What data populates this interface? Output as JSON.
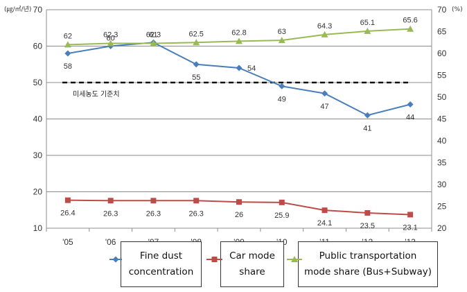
{
  "chart_data": {
    "type": "line",
    "categories": [
      "'05",
      "'06",
      "'07",
      "'08",
      "'09",
      "'10",
      "'11",
      "'12",
      "'13"
    ],
    "y_left_unit": "(㎍/㎥/년)",
    "y_right_unit": "(%)",
    "y_left_ticks": [
      "10",
      "20",
      "30",
      "40",
      "50",
      "60",
      "70"
    ],
    "y_right_ticks": [
      "20",
      "25",
      "30",
      "35",
      "40",
      "45",
      "50",
      "55",
      "60",
      "65",
      "70"
    ],
    "ylim_left": [
      10,
      70
    ],
    "ylim_right": [
      20,
      70
    ],
    "reference_line": {
      "value": 50,
      "label": "미세농도 기준치"
    },
    "series": [
      {
        "name": "Fine dust concentration",
        "axis": "left",
        "color": "#4a7ebb",
        "marker": "diamond",
        "values": [
          58,
          60,
          61,
          55,
          54,
          49,
          47,
          41,
          44
        ],
        "labels": [
          "58",
          "60",
          "61",
          "55",
          "54",
          "49",
          "47",
          "41",
          "44"
        ]
      },
      {
        "name": "Car mode share",
        "axis": "right",
        "color": "#be4b48",
        "marker": "square",
        "values": [
          26.4,
          26.3,
          26.3,
          26.3,
          26,
          25.9,
          24.1,
          23.5,
          23.1
        ],
        "labels": [
          "26.4",
          "26.3",
          "26.3",
          "26.3",
          "26",
          "25.9",
          "24.1",
          "23.5",
          "23.1"
        ]
      },
      {
        "name": "Public transportation mode share (Bus+Subway)",
        "axis": "right",
        "color": "#98b954",
        "marker": "triangle",
        "values": [
          62,
          62.3,
          62.3,
          62.5,
          62.8,
          63,
          64.3,
          65.1,
          65.6
        ],
        "labels": [
          "62",
          "62.3",
          "62.3",
          "62.5",
          "62.8",
          "63",
          "64.3",
          "65.1",
          "65.6"
        ]
      }
    ],
    "legend": {
      "position": "bottom",
      "items": [
        {
          "label_line1": "Fine dust",
          "label_line2": "concentration"
        },
        {
          "label_line1": "Car mode",
          "label_line2": "share"
        },
        {
          "label_line1": "Public transportation",
          "label_line2": "mode share (Bus+Subway)"
        }
      ]
    },
    "grid": true
  }
}
